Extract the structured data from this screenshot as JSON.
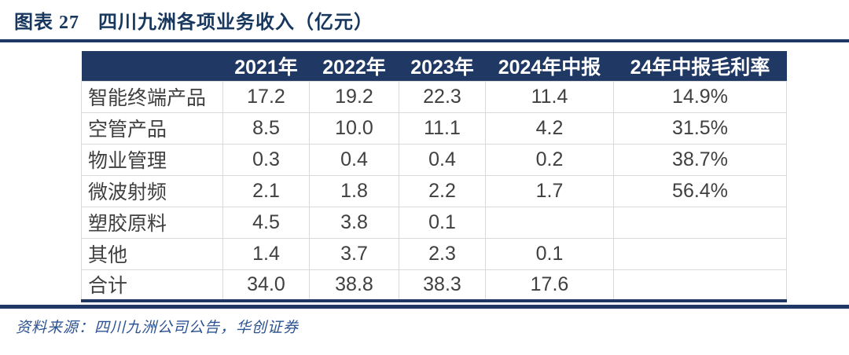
{
  "figure": {
    "label": "图表 27",
    "title": "四川九洲各项业务收入（亿元）"
  },
  "chart_data": {
    "type": "table",
    "figure_label": "图表 27",
    "title": "四川九洲各项业务收入（亿元）",
    "unit": "亿元",
    "columns": [
      "",
      "2021年",
      "2022年",
      "2023年",
      "2024年中报",
      "24年中报毛利率"
    ],
    "rows": [
      [
        "智能终端产品",
        "17.2",
        "19.2",
        "22.3",
        "11.4",
        "14.9%"
      ],
      [
        "空管产品",
        "8.5",
        "10.0",
        "11.1",
        "4.2",
        "31.5%"
      ],
      [
        "物业管理",
        "0.3",
        "0.4",
        "0.4",
        "0.2",
        "38.7%"
      ],
      [
        "微波射频",
        "2.1",
        "1.8",
        "2.2",
        "1.7",
        "56.4%"
      ],
      [
        "塑胶原料",
        "4.5",
        "3.8",
        "0.1",
        "",
        ""
      ],
      [
        "其他",
        "1.4",
        "3.7",
        "2.3",
        "0.1",
        ""
      ],
      [
        "合计",
        "34.0",
        "38.8",
        "38.3",
        "17.6",
        ""
      ]
    ],
    "source": "资料来源：四川九洲公司公告，华创证券"
  },
  "colors": {
    "navy": "#1f3864",
    "title_text": "#17375e",
    "header_bg": "#1f3864",
    "header_text": "#ffffff",
    "grid_border": "#d9d9d9",
    "body_text": "#404040",
    "source_text": "#2b5291"
  }
}
